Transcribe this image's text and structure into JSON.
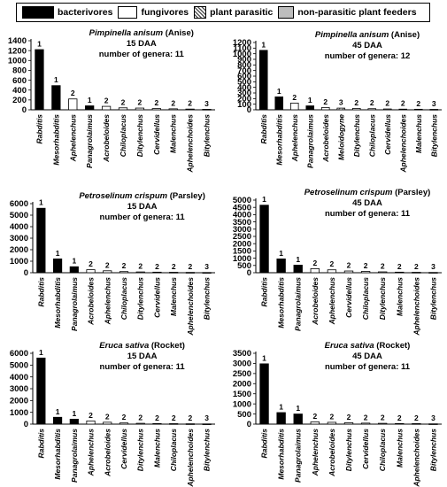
{
  "legend": {
    "items": [
      {
        "label": "bacterivores",
        "color": "#000000"
      },
      {
        "label": "fungivores",
        "color": "#ffffff"
      },
      {
        "label": "plant parasitic",
        "color": "#777777"
      },
      {
        "label": "non-parasitic plant feeders",
        "color": "#bdbdbd"
      }
    ]
  },
  "chart_data": [
    {
      "type": "bar",
      "title_species": "Pimpinella anisum",
      "title_common": "(Anise)",
      "title_line2": "15 DAA",
      "title_line3": "number of genera: 11",
      "ylim": [
        0,
        1400
      ],
      "yticks": [
        0,
        200,
        400,
        600,
        800,
        1000,
        1200,
        1400
      ],
      "categories": [
        "Rabditis",
        "Mesorhabditis",
        "Aphelenchus",
        "Panagrolaimus",
        "Acrobeloides",
        "Chiloplacus",
        "Ditylenchus",
        "Cervidellus",
        "Malenchus",
        "Aphelenchoides",
        "Bitylenchus"
      ],
      "values": [
        1220,
        490,
        220,
        80,
        70,
        40,
        35,
        25,
        20,
        15,
        10
      ],
      "groups": [
        1,
        1,
        2,
        1,
        2,
        2,
        2,
        2,
        2,
        2,
        3
      ]
    },
    {
      "type": "bar",
      "title_species": "Pimpinella anisum",
      "title_common": "(Anise)",
      "title_line2": "45 DAA",
      "title_line3": "number of genera: 12",
      "ylim": [
        0,
        1200
      ],
      "yticks": [
        0,
        100,
        200,
        300,
        400,
        500,
        600,
        700,
        800,
        900,
        1000,
        1100,
        1200
      ],
      "categories": [
        "Rabditis",
        "Mesorhabditis",
        "Aphelenchus",
        "Panagrolaimus",
        "Acrobeloides",
        "Meloidogyne",
        "Ditylenchus",
        "Chiloplacus",
        "Cervidellus",
        "Aphelenchoides",
        "Malenchus",
        "Bitylenchus"
      ],
      "values": [
        1060,
        230,
        120,
        70,
        40,
        30,
        25,
        20,
        15,
        12,
        10,
        8
      ],
      "groups": [
        1,
        1,
        2,
        1,
        2,
        3,
        2,
        2,
        2,
        2,
        2,
        3
      ]
    },
    {
      "type": "bar",
      "title_species": "Petroselinum crispum",
      "title_common": "(Parsley)",
      "title_line2": "15 DAA",
      "title_line3": "number of genera: 11",
      "ylim": [
        0,
        6000
      ],
      "yticks": [
        0,
        1000,
        2000,
        3000,
        4000,
        5000,
        6000
      ],
      "categories": [
        "Rabditis",
        "Mesorhabditis",
        "Panagrolaimus",
        "Acrobeloides",
        "Aphelenchus",
        "Chiloplacus",
        "Ditylenchus",
        "Cervidellus",
        "Malenchus",
        "Aphelenchoides",
        "Bitylenchus"
      ],
      "values": [
        5600,
        1200,
        520,
        260,
        170,
        100,
        70,
        50,
        40,
        30,
        20
      ],
      "groups": [
        1,
        1,
        1,
        2,
        2,
        2,
        2,
        2,
        2,
        2,
        3
      ]
    },
    {
      "type": "bar",
      "title_species": "Petroselinum crispum",
      "title_common": "(Parsley)",
      "title_line2": "45 DAA",
      "title_line3": "number of genera: 11",
      "ylim": [
        0,
        5000
      ],
      "yticks": [
        0,
        500,
        1000,
        1500,
        2000,
        2500,
        3000,
        3500,
        4000,
        4500,
        5000
      ],
      "categories": [
        "Rabditis",
        "Mesorhabditis",
        "Panagrolaimus",
        "Acrobeloides",
        "Aphelenchus",
        "Cervidellus",
        "Chiloplacus",
        "Ditylenchus",
        "Malenchus",
        "Aphelenchoides",
        "Bitylenchus"
      ],
      "values": [
        4650,
        950,
        520,
        280,
        200,
        120,
        90,
        60,
        40,
        30,
        20
      ],
      "groups": [
        1,
        1,
        1,
        2,
        2,
        2,
        2,
        2,
        2,
        2,
        3
      ]
    },
    {
      "type": "bar",
      "title_species": "Eruca sativa",
      "title_common": "(Rocket)",
      "title_line2": "15 DAA",
      "title_line3": "number of genera: 11",
      "ylim": [
        0,
        6000
      ],
      "yticks": [
        0,
        1000,
        2000,
        3000,
        4000,
        5000,
        6000
      ],
      "categories": [
        "Rabditis",
        "Mesorhabditis",
        "Panagrolaimus",
        "Aphelenchus",
        "Acrobeloides",
        "Cervidellus",
        "Ditylenchus",
        "Malenchus",
        "Chiloplacus",
        "Aphelenchoides",
        "Bitylenchus"
      ],
      "values": [
        5600,
        580,
        420,
        270,
        160,
        100,
        70,
        50,
        40,
        30,
        20
      ],
      "groups": [
        1,
        1,
        1,
        2,
        2,
        2,
        2,
        2,
        2,
        2,
        3
      ]
    },
    {
      "type": "bar",
      "title_species": "Eruca sativa",
      "title_common": "(Rocket)",
      "title_line2": "45 DAA",
      "title_line3": "number of genera: 11",
      "ylim": [
        0,
        3500
      ],
      "yticks": [
        0,
        500,
        1000,
        1500,
        2000,
        2500,
        3000,
        3500
      ],
      "categories": [
        "Rabditis",
        "Mesorhabditis",
        "Panagrolaimus",
        "Aphelenchus",
        "Acrobeloides",
        "Ditylenchus",
        "Cervidellus",
        "Chiloplacus",
        "Malenchus",
        "Aphelenchoides",
        "Bitylenchus"
      ],
      "values": [
        2980,
        570,
        500,
        110,
        90,
        70,
        50,
        40,
        30,
        25,
        15
      ],
      "groups": [
        1,
        1,
        1,
        2,
        2,
        2,
        2,
        2,
        2,
        2,
        3
      ]
    }
  ]
}
